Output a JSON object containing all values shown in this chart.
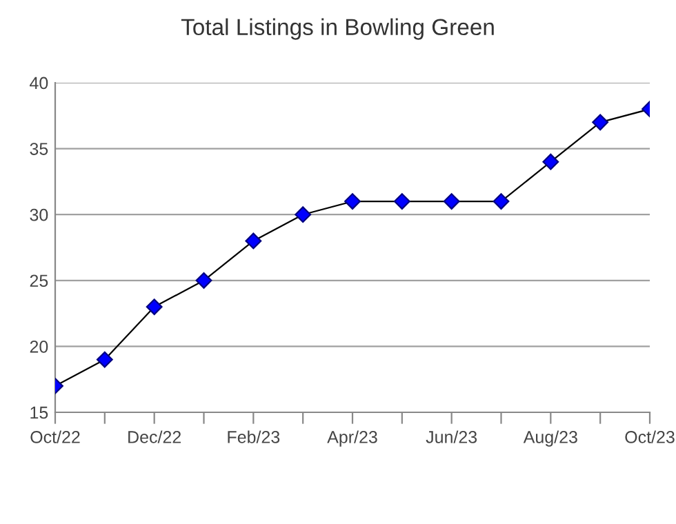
{
  "chart_data": {
    "type": "line",
    "title": "Total Listings in Bowling Green",
    "categories": [
      "Oct/22",
      null,
      "Dec/22",
      null,
      "Feb/23",
      null,
      "Apr/23",
      null,
      "Jun/23",
      null,
      "Aug/23",
      null,
      "Oct/23"
    ],
    "series": [
      {
        "color": "#0000ff",
        "values": [
          17,
          19,
          23,
          25,
          28,
          30,
          31,
          31,
          31,
          31,
          34,
          37,
          38
        ]
      }
    ],
    "ylim": [
      15,
      40
    ],
    "yticks": [
      15,
      20,
      25,
      30,
      35,
      40
    ],
    "grid": "y",
    "marker": "diamond",
    "line_style": "solid"
  }
}
